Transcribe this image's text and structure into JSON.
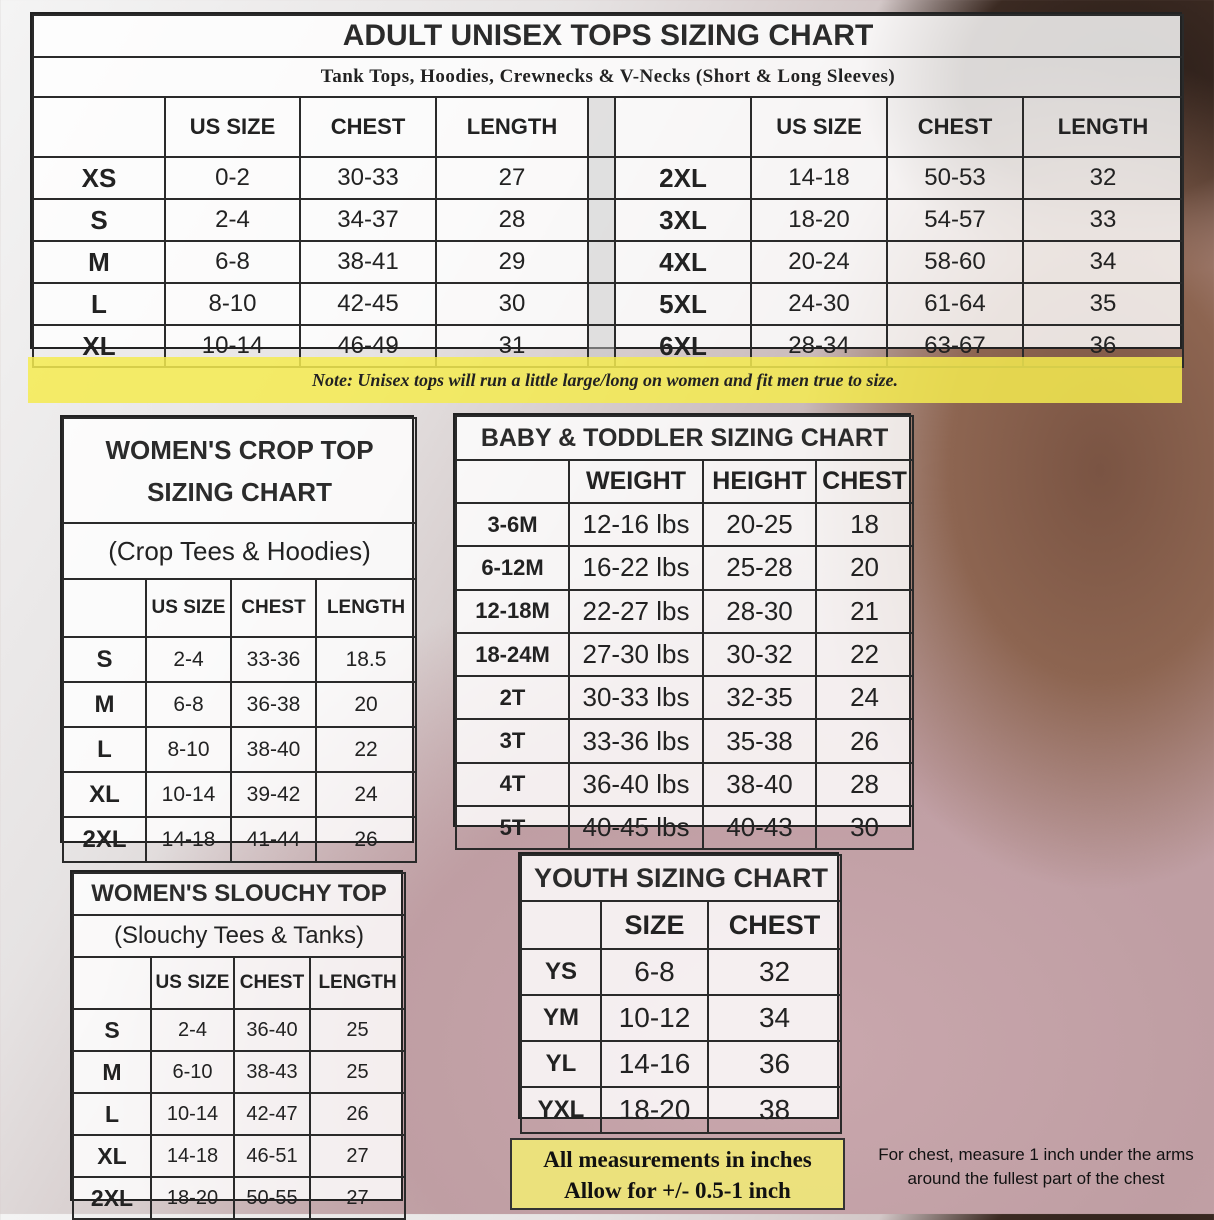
{
  "adult": {
    "title": "ADULT UNISEX TOPS SIZING CHART",
    "subtitle": "Tank Tops, Hoodies, Crewnecks & V-Necks (Short & Long Sleeves)",
    "headers": [
      "",
      "US SIZE",
      "CHEST",
      "LENGTH",
      "",
      "",
      "US SIZE",
      "CHEST",
      "LENGTH"
    ],
    "rows": [
      [
        "XS",
        "0-2",
        "30-33",
        "27",
        "",
        "2XL",
        "14-18",
        "50-53",
        "32"
      ],
      [
        "S",
        "2-4",
        "34-37",
        "28",
        "",
        "3XL",
        "18-20",
        "54-57",
        "33"
      ],
      [
        "M",
        "6-8",
        "38-41",
        "29",
        "",
        "4XL",
        "20-24",
        "58-60",
        "34"
      ],
      [
        "L",
        "8-10",
        "42-45",
        "30",
        "",
        "5XL",
        "24-30",
        "61-64",
        "35"
      ],
      [
        "XL",
        "10-14",
        "46-49",
        "31",
        "",
        "6XL",
        "28-34",
        "63-67",
        "36"
      ]
    ],
    "note": "Note: Unisex tops will run a little large/long on women and fit men true to size."
  },
  "crop": {
    "title": "WOMEN'S CROP TOP SIZING CHART",
    "subtitle": "(Crop Tees & Hoodies)",
    "headers": [
      "",
      "US SIZE",
      "CHEST",
      "LENGTH"
    ],
    "rows": [
      [
        "S",
        "2-4",
        "33-36",
        "18.5"
      ],
      [
        "M",
        "6-8",
        "36-38",
        "20"
      ],
      [
        "L",
        "8-10",
        "38-40",
        "22"
      ],
      [
        "XL",
        "10-14",
        "39-42",
        "24"
      ],
      [
        "2XL",
        "14-18",
        "41-44",
        "26"
      ]
    ]
  },
  "baby": {
    "title": "BABY & TODDLER SIZING CHART",
    "headers": [
      "",
      "WEIGHT",
      "HEIGHT",
      "CHEST"
    ],
    "rows": [
      [
        "3-6M",
        "12-16 lbs",
        "20-25",
        "18"
      ],
      [
        "6-12M",
        "16-22 lbs",
        "25-28",
        "20"
      ],
      [
        "12-18M",
        "22-27 lbs",
        "28-30",
        "21"
      ],
      [
        "18-24M",
        "27-30 lbs",
        "30-32",
        "22"
      ],
      [
        "2T",
        "30-33 lbs",
        "32-35",
        "24"
      ],
      [
        "3T",
        "33-36 lbs",
        "35-38",
        "26"
      ],
      [
        "4T",
        "36-40 lbs",
        "38-40",
        "28"
      ],
      [
        "5T",
        "40-45 lbs",
        "40-43",
        "30"
      ]
    ]
  },
  "slouchy": {
    "title": "WOMEN'S SLOUCHY TOP",
    "subtitle": "(Slouchy Tees & Tanks)",
    "headers": [
      "",
      "US SIZE",
      "CHEST",
      "LENGTH"
    ],
    "rows": [
      [
        "S",
        "2-4",
        "36-40",
        "25"
      ],
      [
        "M",
        "6-10",
        "38-43",
        "25"
      ],
      [
        "L",
        "10-14",
        "42-47",
        "26"
      ],
      [
        "XL",
        "14-18",
        "46-51",
        "27"
      ],
      [
        "2XL",
        "18-20",
        "50-55",
        "27"
      ]
    ]
  },
  "youth": {
    "title": "YOUTH SIZING CHART",
    "headers": [
      "",
      "SIZE",
      "CHEST"
    ],
    "rows": [
      [
        "YS",
        "6-8",
        "32"
      ],
      [
        "YM",
        "10-12",
        "34"
      ],
      [
        "YL",
        "14-16",
        "36"
      ],
      [
        "YXL",
        "18-20",
        "38"
      ]
    ]
  },
  "footer": {
    "measurements_line1": "All measurements in inches",
    "measurements_line2": "Allow for +/- 0.5-1 inch",
    "chest_line1": "For chest, measure 1 inch under the arms",
    "chest_line2": "around the fullest part of the chest"
  },
  "colors": {
    "note_bg": "#f5eb50",
    "border": "#2a2a2a"
  }
}
